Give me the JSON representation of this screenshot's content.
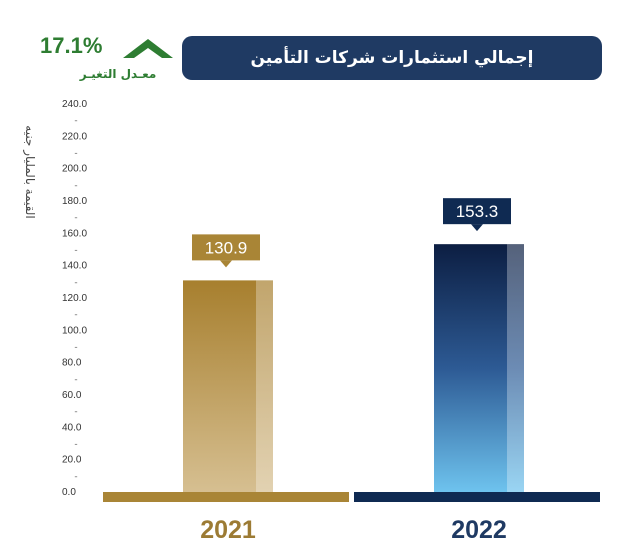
{
  "header": {
    "title": "إجمالي استثمارات شركات التأمين",
    "change_value": "17.1%",
    "change_label": "معـدل التغيـر",
    "colors": {
      "pill": "#1f3a63",
      "change": "#2e7d32"
    }
  },
  "chart_data": {
    "type": "bar",
    "title": "إجمالي استثمارات شركات التأمين",
    "ylabel": "القيمة بالمليار جنيه",
    "categories": [
      "2021",
      "2022"
    ],
    "values": [
      130.9,
      153.3
    ],
    "value_labels": [
      "130.9",
      "153.3"
    ],
    "ylim": [
      0,
      240
    ],
    "yticks": [
      "0.0",
      "20.0",
      "40.0",
      "60.0",
      "80.0",
      "100.0",
      "120.0",
      "140.0",
      "160.0",
      "180.0",
      "200.0",
      "220.0",
      "240.0"
    ],
    "grid": false,
    "bar_colors": [
      "#a98536",
      "#0f2a52"
    ]
  }
}
